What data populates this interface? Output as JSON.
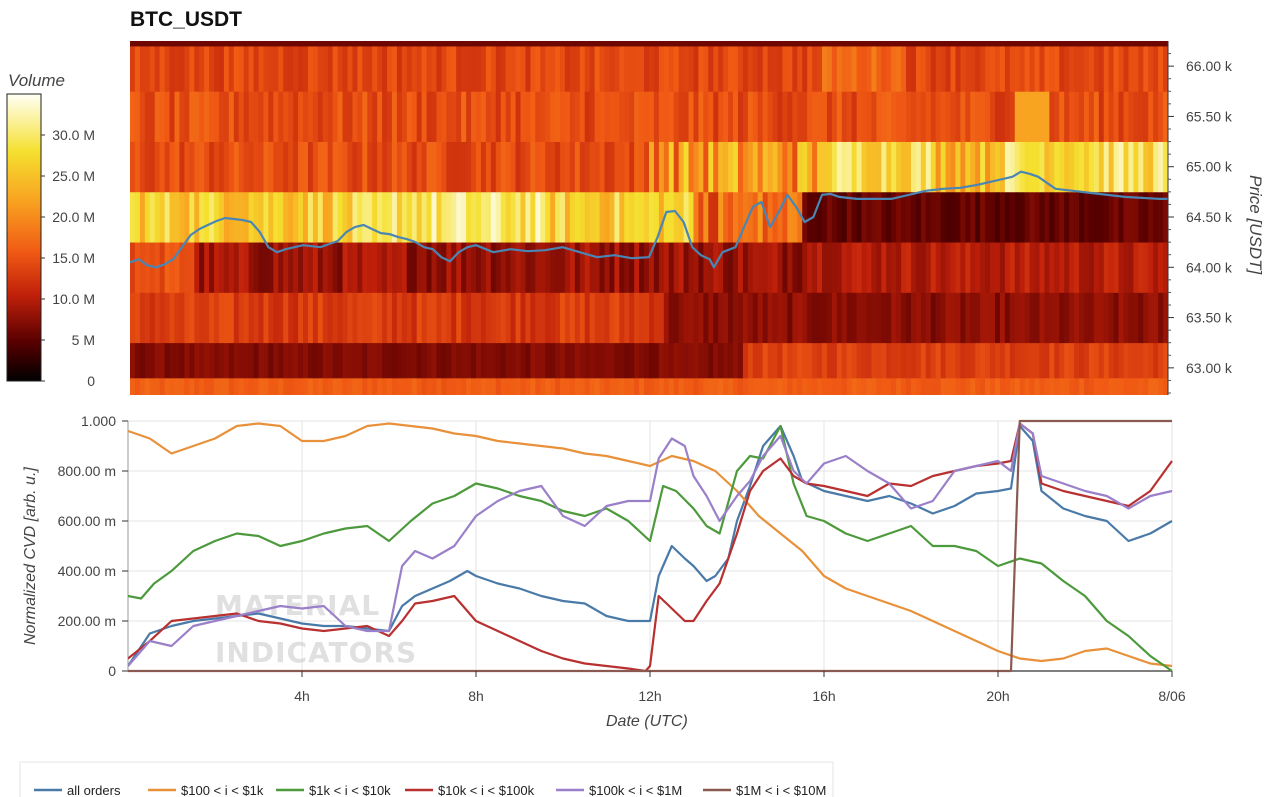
{
  "chart_data": [
    {
      "type": "heatmap",
      "title": "BTC_USDT",
      "ylabel": "Price [USDT]",
      "y_ticks": [
        "63.00 k",
        "63.50 k",
        "64.00 k",
        "64.50 k",
        "65.00 k",
        "65.50 k",
        "66.00 k"
      ],
      "y_tick_values": [
        63000,
        63500,
        64000,
        64500,
        65000,
        65500,
        66000
      ],
      "ylim": [
        62730,
        66250
      ],
      "x_range_hours": [
        0,
        24
      ],
      "colorbar": {
        "label": "Volume",
        "ticks": [
          "0",
          "5 M",
          "10.0 M",
          "15.0 M",
          "20.0 M",
          "25.0 M",
          "30.0 M"
        ],
        "tick_values": [
          0,
          5,
          10,
          15,
          20,
          25,
          30
        ],
        "range": [
          0,
          35
        ],
        "colors": [
          "#000000",
          "#5a0000",
          "#c0200a",
          "#f05a14",
          "#f8a020",
          "#f5e030",
          "#fffff5"
        ]
      },
      "price_bands": [
        {
          "low": 62730,
          "high": 62900,
          "base": 16
        },
        {
          "low": 62900,
          "high": 63250,
          "base": 8
        },
        {
          "low": 63250,
          "high": 63750,
          "base": 9
        },
        {
          "low": 63750,
          "high": 64250,
          "base": 9
        },
        {
          "low": 64250,
          "high": 64750,
          "base": 24
        },
        {
          "low": 64750,
          "high": 65250,
          "base": 15
        },
        {
          "low": 65250,
          "high": 65750,
          "base": 14
        },
        {
          "low": 65750,
          "high": 66200,
          "base": 14
        },
        {
          "low": 66200,
          "high": 66250,
          "base": 6
        }
      ],
      "price_series": {
        "x": [
          0,
          0.2,
          0.4,
          0.6,
          0.8,
          1,
          1.2,
          1.4,
          1.6,
          1.8,
          2,
          2.2,
          2.4,
          2.6,
          2.8,
          3,
          3.2,
          3.4,
          3.6,
          3.8,
          4,
          4.2,
          4.4,
          4.6,
          4.8,
          5,
          5.2,
          5.4,
          5.6,
          5.8,
          6,
          6.2,
          6.4,
          6.6,
          6.8,
          7,
          7.2,
          7.4,
          7.6,
          7.8,
          8,
          8.4,
          8.8,
          9.2,
          9.6,
          10,
          10.4,
          10.8,
          11.2,
          11.6,
          12,
          12.2,
          12.4,
          12.6,
          12.8,
          13,
          13.2,
          13.4,
          13.5,
          13.7,
          14,
          14.2,
          14.4,
          14.6,
          14.8,
          15,
          15.2,
          15.4,
          15.6,
          15.8,
          16,
          16.2,
          16.4,
          16.8,
          17.2,
          17.6,
          18,
          18.4,
          18.8,
          19.2,
          19.6,
          20,
          20.2,
          20.4,
          20.6,
          20.8,
          21,
          21.4,
          21.8,
          22.2,
          22.6,
          23,
          23.4,
          23.8,
          24
        ],
        "y": [
          64050,
          64080,
          64020,
          64000,
          64030,
          64080,
          64200,
          64320,
          64380,
          64420,
          64460,
          64490,
          64480,
          64470,
          64450,
          64350,
          64200,
          64150,
          64180,
          64200,
          64220,
          64210,
          64200,
          64230,
          64260,
          64350,
          64400,
          64420,
          64380,
          64340,
          64330,
          64300,
          64280,
          64250,
          64200,
          64180,
          64100,
          64060,
          64150,
          64200,
          64220,
          64150,
          64180,
          64160,
          64170,
          64200,
          64150,
          64100,
          64120,
          64090,
          64100,
          64300,
          64550,
          64560,
          64450,
          64200,
          64120,
          64080,
          64000,
          64150,
          64200,
          64400,
          64600,
          64650,
          64400,
          64550,
          64720,
          64600,
          64450,
          64500,
          64720,
          64730,
          64700,
          64680,
          64680,
          64680,
          64720,
          64760,
          64780,
          64790,
          64820,
          64860,
          64880,
          64900,
          64950,
          64930,
          64900,
          64780,
          64760,
          64740,
          64720,
          64700,
          64690,
          64680,
          64680
        ]
      }
    },
    {
      "type": "line",
      "xlabel": "Date (UTC)",
      "ylabel": "Normalized CVD [arb. u.]",
      "x_ticks": [
        "4h",
        "8h",
        "12h",
        "16h",
        "20h",
        "8/06"
      ],
      "x_tick_values": [
        4,
        8,
        12,
        16,
        20,
        24
      ],
      "y_ticks": [
        "0",
        "200.00 m",
        "400.00 m",
        "600.00 m",
        "800.00 m",
        "1.000"
      ],
      "y_tick_values": [
        0,
        0.2,
        0.4,
        0.6,
        0.8,
        1.0
      ],
      "xlim": [
        0,
        24
      ],
      "ylim": [
        0,
        1
      ],
      "legend_position": "bottom-left",
      "grid": true,
      "series": [
        {
          "name": "all orders",
          "color": "#4a7aa8",
          "x": [
            0,
            0.5,
            1,
            1.5,
            2,
            2.5,
            3,
            3.5,
            4,
            4.5,
            5,
            5.5,
            6,
            6.3,
            6.6,
            7,
            7.4,
            7.8,
            8,
            8.5,
            9,
            9.5,
            10,
            10.5,
            11,
            11.5,
            12,
            12.2,
            12.5,
            12.8,
            13,
            13.3,
            13.5,
            13.8,
            14,
            14.3,
            14.6,
            15,
            15.3,
            15.5,
            16,
            16.5,
            17,
            17.5,
            18,
            18.5,
            19,
            19.5,
            20,
            20.3,
            20.5,
            20.8,
            21,
            21.5,
            22,
            22.5,
            23,
            23.5,
            24
          ],
          "y": [
            0.02,
            0.15,
            0.18,
            0.2,
            0.21,
            0.22,
            0.23,
            0.21,
            0.19,
            0.18,
            0.18,
            0.17,
            0.16,
            0.26,
            0.3,
            0.33,
            0.36,
            0.4,
            0.38,
            0.35,
            0.33,
            0.3,
            0.28,
            0.27,
            0.22,
            0.2,
            0.2,
            0.38,
            0.5,
            0.45,
            0.42,
            0.36,
            0.38,
            0.45,
            0.6,
            0.74,
            0.9,
            0.98,
            0.86,
            0.76,
            0.72,
            0.7,
            0.68,
            0.7,
            0.67,
            0.63,
            0.66,
            0.71,
            0.72,
            0.73,
            0.98,
            0.92,
            0.72,
            0.65,
            0.62,
            0.6,
            0.52,
            0.55,
            0.6
          ]
        },
        {
          "name": "$100 < i < $1k",
          "color": "#e8913a",
          "x": [
            0,
            0.5,
            1,
            1.5,
            2,
            2.5,
            3,
            3.5,
            4,
            4.5,
            5,
            5.5,
            6,
            6.5,
            7,
            7.5,
            8,
            8.5,
            9,
            9.5,
            10,
            10.5,
            11,
            11.5,
            12,
            12.5,
            13,
            13.5,
            14,
            14.5,
            15,
            15.5,
            16,
            16.5,
            17,
            17.5,
            18,
            18.5,
            19,
            19.5,
            20,
            20.5,
            21,
            21.5,
            22,
            22.5,
            23,
            23.5,
            24
          ],
          "y": [
            0.96,
            0.93,
            0.87,
            0.9,
            0.93,
            0.98,
            0.99,
            0.98,
            0.92,
            0.92,
            0.94,
            0.98,
            0.99,
            0.98,
            0.97,
            0.95,
            0.94,
            0.92,
            0.91,
            0.9,
            0.89,
            0.87,
            0.86,
            0.84,
            0.82,
            0.86,
            0.84,
            0.8,
            0.72,
            0.62,
            0.55,
            0.48,
            0.38,
            0.33,
            0.3,
            0.27,
            0.24,
            0.2,
            0.16,
            0.12,
            0.08,
            0.05,
            0.04,
            0.05,
            0.08,
            0.09,
            0.06,
            0.03,
            0.02
          ]
        },
        {
          "name": "$1k < i < $10k",
          "color": "#4c9a3c",
          "x": [
            0,
            0.3,
            0.6,
            1,
            1.5,
            2,
            2.5,
            3,
            3.5,
            4,
            4.5,
            5,
            5.5,
            6,
            6.5,
            7,
            7.5,
            8,
            8.5,
            9,
            9.5,
            10,
            10.5,
            11,
            11.5,
            12,
            12.3,
            12.6,
            13,
            13.3,
            13.6,
            14,
            14.3,
            14.6,
            15,
            15.3,
            15.6,
            16,
            16.5,
            17,
            17.5,
            18,
            18.5,
            19,
            19.5,
            20,
            20.5,
            21,
            21.5,
            22,
            22.5,
            23,
            23.5,
            24
          ],
          "y": [
            0.3,
            0.29,
            0.35,
            0.4,
            0.48,
            0.52,
            0.55,
            0.54,
            0.5,
            0.52,
            0.55,
            0.57,
            0.58,
            0.52,
            0.6,
            0.67,
            0.7,
            0.75,
            0.73,
            0.7,
            0.68,
            0.64,
            0.62,
            0.65,
            0.6,
            0.52,
            0.74,
            0.72,
            0.65,
            0.58,
            0.55,
            0.8,
            0.86,
            0.85,
            0.98,
            0.75,
            0.62,
            0.6,
            0.55,
            0.52,
            0.55,
            0.58,
            0.5,
            0.5,
            0.48,
            0.42,
            0.45,
            0.43,
            0.36,
            0.3,
            0.2,
            0.14,
            0.06,
            0.0
          ]
        },
        {
          "name": "$10k < i < $100k",
          "color": "#b83030",
          "x": [
            0,
            0.5,
            1,
            1.5,
            2,
            2.5,
            3,
            3.5,
            4,
            4.5,
            5,
            5.5,
            6,
            6.3,
            6.6,
            7,
            7.5,
            8,
            8.5,
            9,
            9.5,
            10,
            10.5,
            11,
            11.5,
            11.9,
            12,
            12.2,
            12.5,
            12.8,
            13,
            13.3,
            13.6,
            14,
            14.3,
            14.6,
            15,
            15.3,
            15.6,
            16,
            16.5,
            17,
            17.5,
            18,
            18.5,
            19,
            19.5,
            20,
            20.3,
            20.5,
            20.8,
            21,
            21.5,
            22,
            22.5,
            23,
            23.5,
            24
          ],
          "y": [
            0.05,
            0.12,
            0.2,
            0.21,
            0.22,
            0.23,
            0.2,
            0.19,
            0.17,
            0.16,
            0.17,
            0.18,
            0.14,
            0.2,
            0.27,
            0.28,
            0.3,
            0.2,
            0.16,
            0.12,
            0.08,
            0.05,
            0.03,
            0.02,
            0.01,
            0.0,
            0.02,
            0.3,
            0.25,
            0.2,
            0.2,
            0.28,
            0.35,
            0.55,
            0.72,
            0.8,
            0.85,
            0.78,
            0.75,
            0.74,
            0.72,
            0.7,
            0.75,
            0.74,
            0.78,
            0.8,
            0.82,
            0.83,
            0.84,
            0.99,
            0.95,
            0.75,
            0.72,
            0.7,
            0.68,
            0.66,
            0.72,
            0.84
          ]
        },
        {
          "name": "$100k < i < $1M",
          "color": "#9a7fc9",
          "x": [
            0,
            0.5,
            1,
            1.5,
            2,
            2.5,
            3,
            3.5,
            4,
            4.5,
            5,
            5.5,
            6,
            6.3,
            6.6,
            7,
            7.5,
            8,
            8.5,
            9,
            9.5,
            10,
            10.5,
            11,
            11.5,
            12,
            12.2,
            12.5,
            12.8,
            13,
            13.3,
            13.6,
            14,
            14.3,
            14.6,
            15,
            15.3,
            15.6,
            16,
            16.5,
            17,
            17.5,
            18,
            18.5,
            19,
            19.5,
            20,
            20.3,
            20.5,
            20.8,
            21,
            21.5,
            22,
            22.5,
            23,
            23.5,
            24
          ],
          "y": [
            0.02,
            0.12,
            0.1,
            0.18,
            0.2,
            0.22,
            0.24,
            0.26,
            0.25,
            0.26,
            0.18,
            0.16,
            0.16,
            0.42,
            0.48,
            0.45,
            0.5,
            0.62,
            0.68,
            0.72,
            0.74,
            0.62,
            0.58,
            0.66,
            0.68,
            0.68,
            0.85,
            0.93,
            0.9,
            0.78,
            0.7,
            0.6,
            0.7,
            0.76,
            0.86,
            0.94,
            0.8,
            0.75,
            0.83,
            0.86,
            0.8,
            0.75,
            0.65,
            0.68,
            0.8,
            0.82,
            0.84,
            0.8,
            0.99,
            0.95,
            0.78,
            0.75,
            0.72,
            0.7,
            0.65,
            0.7,
            0.72
          ]
        },
        {
          "name": "$1M < i < $10M",
          "color": "#8a5a50",
          "x": [
            0,
            20.3,
            20.4,
            20.5,
            24
          ],
          "y": [
            0,
            0,
            0.5,
            1.0,
            1.0
          ]
        }
      ]
    }
  ],
  "watermark": [
    "MATERIAL",
    "INDICATORS"
  ]
}
